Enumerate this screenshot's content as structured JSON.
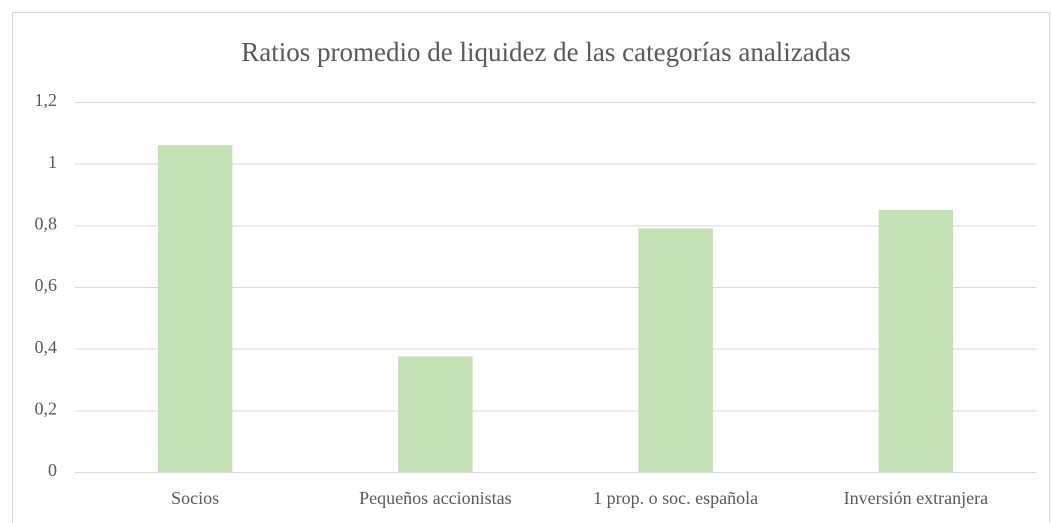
{
  "chart_data": {
    "type": "bar",
    "title": "Ratios promedio de liquidez de las categorías analizadas",
    "categories": [
      "Socios",
      "Pequeños accionistas",
      "1 prop. o soc. española",
      "Inversión extranjera"
    ],
    "values": [
      1.06,
      0.375,
      0.79,
      0.85
    ],
    "color": "#c5e0b4",
    "ylim": [
      0,
      1.2
    ],
    "yticks": [
      0,
      {
        "value": 0.2,
        "label": "0,2"
      },
      {
        "value": 0.4,
        "label": "0,4"
      },
      {
        "value": 0.6,
        "label": "0,6"
      },
      {
        "value": 0.8,
        "label": "0,8"
      },
      1,
      {
        "value": 1.2,
        "label": "1,2"
      }
    ],
    "grid": true
  }
}
